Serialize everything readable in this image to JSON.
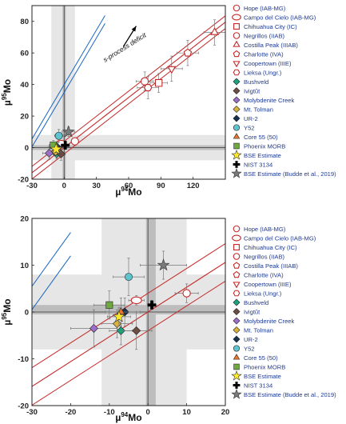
{
  "chart_data": [
    {
      "type": "scatter",
      "title": "",
      "xlabel_base": "µ",
      "xlabel_sup": "94",
      "xlabel_tail": "Mo",
      "ylabel_base": "µ",
      "ylabel_sup": "95",
      "ylabel_tail": "Mo",
      "xlim": [
        -30,
        150
      ],
      "ylim": [
        -20,
        90
      ],
      "xticks": [
        -30,
        0,
        30,
        60,
        90,
        120
      ],
      "yticks": [
        -20,
        0,
        20,
        40,
        60,
        80
      ],
      "grid": false,
      "legend_position": "right",
      "annotation": {
        "text": "s-process deficit",
        "x": 38,
        "y": 54,
        "arrow_from": [
          55,
          64
        ],
        "arrow_to": [
          67,
          77
        ]
      },
      "shaded_bands": [
        {
          "axis": "x",
          "from": -12,
          "to": 10,
          "color": "#e6e6e6"
        },
        {
          "axis": "y",
          "from": -8,
          "to": 8,
          "color": "#e6e6e6"
        },
        {
          "axis": "x",
          "from": -1.5,
          "to": 1.5,
          "color": "#bdbdbd"
        },
        {
          "axis": "y",
          "from": -1.5,
          "to": 1.5,
          "color": "#bdbdbd"
        }
      ],
      "lines": [
        {
          "name": "",
          "color": "#c62828",
          "slope": 0.53,
          "intercept": 0,
          "x_range": [
            -30,
            150
          ]
        },
        {
          "name": "",
          "color": "#c62828",
          "slope": 0.53,
          "intercept": 4,
          "x_range": [
            -30,
            150
          ]
        },
        {
          "name": "",
          "color": "#c62828",
          "slope": 0.53,
          "intercept": -4,
          "x_range": [
            -30,
            150
          ]
        },
        {
          "name": "",
          "color": "#1565c0",
          "slope": 1.15,
          "intercept": 40,
          "x_range": [
            -30,
            38
          ]
        },
        {
          "name": "",
          "color": "#1565c0",
          "slope": 1.15,
          "intercept": 35,
          "x_range": [
            -30,
            38
          ]
        }
      ],
      "series": [
        {
          "name": "Hope (IAB-MG)",
          "marker": "circle",
          "filled": false,
          "color": "#c62828",
          "x": [
            10
          ],
          "y": [
            4
          ],
          "xerr": [
            3
          ],
          "yerr": [
            2
          ]
        },
        {
          "name": "Campo del Cielo (IAB-MG)",
          "marker": "ellipse",
          "filled": false,
          "color": "#c62828",
          "x": [
            -3
          ],
          "y": [
            2.5
          ],
          "xerr": [
            2
          ],
          "yerr": [
            1
          ]
        },
        {
          "name": "Chihuahua City (IC)",
          "marker": "square",
          "filled": false,
          "color": "#c62828",
          "x": [
            88
          ],
          "y": [
            41
          ],
          "xerr": [
            8
          ],
          "yerr": [
            6
          ]
        },
        {
          "name": "Negrillos (IIAB)",
          "marker": "circle",
          "filled": false,
          "color": "#c62828",
          "x": [
            75
          ],
          "y": [
            42
          ],
          "xerr": [
            8
          ],
          "yerr": [
            6
          ]
        },
        {
          "name": "Costilla Peak (IIIAB)",
          "marker": "triangle",
          "filled": false,
          "color": "#c62828",
          "x": [
            140
          ],
          "y": [
            73
          ],
          "xerr": [
            10
          ],
          "yerr": [
            8
          ]
        },
        {
          "name": "Charlotte (IVA)",
          "marker": "pentagon",
          "filled": false,
          "color": "#c62828",
          "x": [
            115
          ],
          "y": [
            60
          ],
          "xerr": [
            10
          ],
          "yerr": [
            8
          ]
        },
        {
          "name": "Coopertown (IIIE)",
          "marker": "triangle-down",
          "filled": false,
          "color": "#c62828",
          "x": [
            100
          ],
          "y": [
            50
          ],
          "xerr": [
            10
          ],
          "yerr": [
            8
          ]
        },
        {
          "name": "Lieksa (Ungr.)",
          "marker": "hexagon",
          "filled": false,
          "color": "#c62828",
          "x": [
            78
          ],
          "y": [
            38
          ],
          "xerr": [
            10
          ],
          "yerr": [
            7
          ]
        },
        {
          "name": "Bushveld",
          "marker": "diamond",
          "filled": true,
          "color": "#1aa37a",
          "x": [
            -7
          ],
          "y": [
            -4
          ],
          "xerr": [
            3
          ],
          "yerr": [
            3
          ]
        },
        {
          "name": "Ivigtût",
          "marker": "diamond",
          "filled": true,
          "color": "#6d4c41",
          "x": [
            -3
          ],
          "y": [
            -4
          ],
          "xerr": [
            4
          ],
          "yerr": [
            4
          ]
        },
        {
          "name": "Molybdenite Creek",
          "marker": "diamond",
          "filled": true,
          "color": "#9b6ec9",
          "x": [
            -14
          ],
          "y": [
            -3.5
          ],
          "xerr": [
            6
          ],
          "yerr": [
            4
          ]
        },
        {
          "name": "Mt. Tolman",
          "marker": "diamond",
          "filled": true,
          "color": "#d8b23a",
          "x": [
            -8
          ],
          "y": [
            -2.5
          ],
          "xerr": [
            4
          ],
          "yerr": [
            3
          ]
        },
        {
          "name": "UR-2",
          "marker": "diamond",
          "filled": true,
          "color": "#16324f",
          "x": [
            -6
          ],
          "y": [
            0
          ],
          "xerr": [
            4
          ],
          "yerr": [
            3
          ]
        },
        {
          "name": "Y52",
          "marker": "circle",
          "filled": true,
          "color": "#5ec4cf",
          "x": [
            -5
          ],
          "y": [
            7.5
          ],
          "xerr": [
            4
          ],
          "yerr": [
            4
          ]
        },
        {
          "name": "Core 55 (50)",
          "marker": "triangle",
          "filled": true,
          "color": "#e8742c",
          "x": [
            -7
          ],
          "y": [
            0
          ],
          "xerr": [
            4
          ],
          "yerr": [
            3
          ]
        },
        {
          "name": "Phoenix MORB",
          "marker": "square",
          "filled": true,
          "color": "#6da93d",
          "x": [
            -10
          ],
          "y": [
            1.5
          ],
          "xerr": [
            4
          ],
          "yerr": [
            3
          ]
        },
        {
          "name": "BSE Estimate",
          "marker": "star",
          "filled": true,
          "color": "#ffe92b",
          "x": [
            -7.5
          ],
          "y": [
            -1
          ],
          "xerr": [
            3
          ],
          "yerr": [
            2
          ]
        },
        {
          "name": "NIST 3134",
          "marker": "cross",
          "filled": true,
          "color": "#000000",
          "x": [
            1
          ],
          "y": [
            1.5
          ],
          "xerr": [
            1
          ],
          "yerr": [
            1
          ]
        },
        {
          "name": "BSE Estimate (Budde et al., 2019)",
          "marker": "star",
          "filled": true,
          "color": "#7a7a7a",
          "x": [
            4
          ],
          "y": [
            10
          ],
          "xerr": [
            6
          ],
          "yerr": [
            3
          ]
        }
      ]
    },
    {
      "type": "scatter",
      "title": "",
      "xlabel_base": "µ",
      "xlabel_sup": "94",
      "xlabel_tail": "Mo",
      "ylabel_base": "µ",
      "ylabel_sup": "95",
      "ylabel_tail": "Mo",
      "xlim": [
        -30,
        20
      ],
      "ylim": [
        -20,
        20
      ],
      "xticks": [
        -30,
        -20,
        -10,
        0,
        10,
        20
      ],
      "yticks": [
        -20,
        -10,
        0,
        10,
        20
      ],
      "grid": false,
      "legend_position": "right",
      "shaded_bands": [
        {
          "axis": "x",
          "from": -12,
          "to": 10,
          "color": "#e6e6e6"
        },
        {
          "axis": "y",
          "from": -8,
          "to": 8,
          "color": "#e6e6e6"
        },
        {
          "axis": "x",
          "from": -0.5,
          "to": 2,
          "color": "#bdbdbd"
        },
        {
          "axis": "y",
          "from": -0.5,
          "to": 1.5,
          "color": "#bdbdbd"
        }
      ],
      "lines": [
        {
          "name": "",
          "color": "#c62828",
          "slope": 0.53,
          "intercept": 0,
          "x_range": [
            -30,
            20
          ]
        },
        {
          "name": "",
          "color": "#c62828",
          "slope": 0.53,
          "intercept": 4,
          "x_range": [
            -30,
            20
          ]
        },
        {
          "name": "",
          "color": "#c62828",
          "slope": 0.53,
          "intercept": -4,
          "x_range": [
            -30,
            20
          ]
        },
        {
          "name": "",
          "color": "#1565c0",
          "slope": 1.15,
          "intercept": 40,
          "x_range": [
            -30,
            -20
          ]
        },
        {
          "name": "",
          "color": "#1565c0",
          "slope": 1.15,
          "intercept": 35,
          "x_range": [
            -30,
            -20
          ]
        }
      ],
      "series": [
        {
          "name": "Hope (IAB-MG)",
          "marker": "circle",
          "filled": false,
          "color": "#c62828",
          "x": [
            10
          ],
          "y": [
            4
          ],
          "xerr": [
            3
          ],
          "yerr": [
            2
          ]
        },
        {
          "name": "Campo del Cielo (IAB-MG)",
          "marker": "ellipse",
          "filled": false,
          "color": "#c62828",
          "x": [
            -3
          ],
          "y": [
            2.5
          ],
          "xerr": [
            2
          ],
          "yerr": [
            1
          ]
        },
        {
          "name": "Chihuahua City (IC)",
          "marker": "square",
          "filled": false,
          "color": "#c62828",
          "x": [],
          "y": [],
          "xerr": [],
          "yerr": []
        },
        {
          "name": "Negrillos (IIAB)",
          "marker": "circle",
          "filled": false,
          "color": "#c62828",
          "x": [],
          "y": [],
          "xerr": [],
          "yerr": []
        },
        {
          "name": "Costilla Peak (IIIAB)",
          "marker": "pentagon",
          "filled": false,
          "color": "#c62828",
          "x": [],
          "y": [],
          "xerr": [],
          "yerr": []
        },
        {
          "name": "Charlotte (IVA)",
          "marker": "pentagon",
          "filled": false,
          "color": "#c62828",
          "x": [],
          "y": [],
          "xerr": [],
          "yerr": []
        },
        {
          "name": "Coopertown (IIIE)",
          "marker": "triangle-down",
          "filled": false,
          "color": "#c62828",
          "x": [],
          "y": [],
          "xerr": [],
          "yerr": []
        },
        {
          "name": "Lieksa (Ungr.)",
          "marker": "hexagon",
          "filled": false,
          "color": "#c62828",
          "x": [],
          "y": [],
          "xerr": [],
          "yerr": []
        },
        {
          "name": "Bushveld",
          "marker": "diamond",
          "filled": true,
          "color": "#1aa37a",
          "x": [
            -7
          ],
          "y": [
            -4
          ],
          "xerr": [
            3
          ],
          "yerr": [
            3
          ]
        },
        {
          "name": "Ivigtût",
          "marker": "diamond",
          "filled": true,
          "color": "#6d4c41",
          "x": [
            -3
          ],
          "y": [
            -4
          ],
          "xerr": [
            4
          ],
          "yerr": [
            4
          ]
        },
        {
          "name": "Molybdenite Creek",
          "marker": "diamond",
          "filled": true,
          "color": "#9b6ec9",
          "x": [
            -14
          ],
          "y": [
            -3.5
          ],
          "xerr": [
            6
          ],
          "yerr": [
            4
          ]
        },
        {
          "name": "Mt. Tolman",
          "marker": "diamond",
          "filled": true,
          "color": "#d8b23a",
          "x": [
            -8
          ],
          "y": [
            -2.5
          ],
          "xerr": [
            4
          ],
          "yerr": [
            3
          ]
        },
        {
          "name": "UR-2",
          "marker": "diamond",
          "filled": true,
          "color": "#16324f",
          "x": [
            -6
          ],
          "y": [
            0
          ],
          "xerr": [
            4
          ],
          "yerr": [
            3
          ]
        },
        {
          "name": "Y52",
          "marker": "circle",
          "filled": true,
          "color": "#5ec4cf",
          "x": [
            -5
          ],
          "y": [
            7.5
          ],
          "xerr": [
            4
          ],
          "yerr": [
            4
          ]
        },
        {
          "name": "Core 55 (50)",
          "marker": "triangle",
          "filled": true,
          "color": "#e8742c",
          "x": [
            -7
          ],
          "y": [
            0
          ],
          "xerr": [
            4
          ],
          "yerr": [
            3
          ]
        },
        {
          "name": "Phoenix MORB",
          "marker": "square",
          "filled": true,
          "color": "#6da93d",
          "x": [
            -10
          ],
          "y": [
            1.5
          ],
          "xerr": [
            4
          ],
          "yerr": [
            3
          ]
        },
        {
          "name": "BSE Estimate",
          "marker": "star",
          "filled": true,
          "color": "#ffe92b",
          "x": [
            -7.5
          ],
          "y": [
            -1
          ],
          "xerr": [
            3
          ],
          "yerr": [
            2
          ]
        },
        {
          "name": "NIST 3134",
          "marker": "cross",
          "filled": true,
          "color": "#000000",
          "x": [
            1
          ],
          "y": [
            1.5
          ],
          "xerr": [
            1
          ],
          "yerr": [
            1
          ]
        },
        {
          "name": "BSE Estimate (Budde et al., 2019)",
          "marker": "star",
          "filled": true,
          "color": "#7a7a7a",
          "x": [
            4
          ],
          "y": [
            10
          ],
          "xerr": [
            6
          ],
          "yerr": [
            3
          ]
        }
      ]
    }
  ]
}
